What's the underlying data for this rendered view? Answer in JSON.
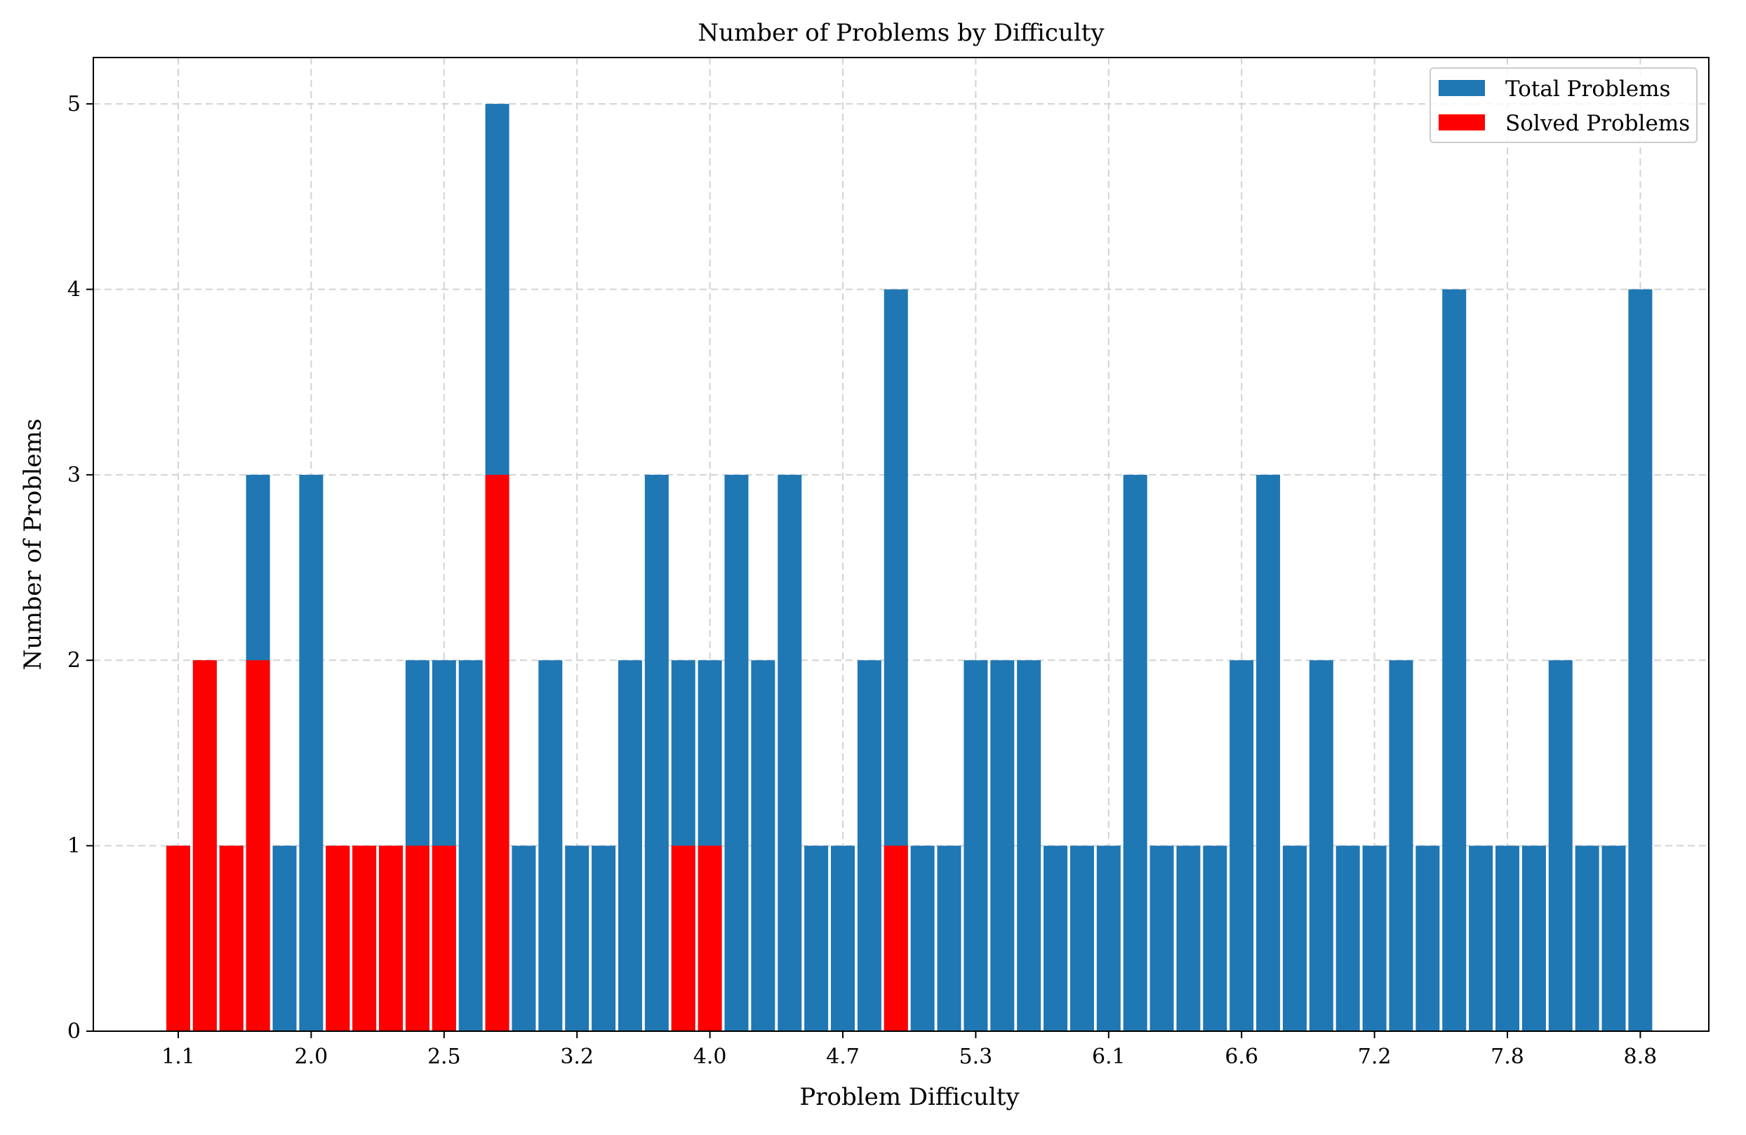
{
  "chart_data": {
    "type": "bar",
    "title": "Number of Problems by Difficulty",
    "xlabel": "Problem Difficulty",
    "ylabel": "Number of Problems",
    "ylim": [
      0,
      5.25
    ],
    "yticks": [
      "0",
      "1",
      "2",
      "3",
      "4",
      "5"
    ],
    "xticks": [
      {
        "label": "1.1",
        "bin": 0
      },
      {
        "label": "2.0",
        "bin": 5
      },
      {
        "label": "2.5",
        "bin": 10
      },
      {
        "label": "3.2",
        "bin": 15
      },
      {
        "label": "4.0",
        "bin": 20
      },
      {
        "label": "4.7",
        "bin": 25
      },
      {
        "label": "5.3",
        "bin": 30
      },
      {
        "label": "6.1",
        "bin": 35
      },
      {
        "label": "6.6",
        "bin": 40
      },
      {
        "label": "7.2",
        "bin": 45
      },
      {
        "label": "7.8",
        "bin": 50
      },
      {
        "label": "8.8",
        "bin": 55
      }
    ],
    "grid": true,
    "legend_position": "top-right",
    "colors": {
      "total": "#1f77b4",
      "solved": "#ff0000"
    },
    "series": [
      {
        "name": "Total Problems",
        "values": [
          1,
          2,
          1,
          3,
          1,
          3,
          1,
          1,
          1,
          2,
          2,
          2,
          5,
          1,
          2,
          1,
          1,
          2,
          3,
          2,
          2,
          3,
          2,
          3,
          1,
          1,
          2,
          4,
          1,
          1,
          2,
          2,
          2,
          1,
          1,
          1,
          3,
          1,
          1,
          1,
          2,
          3,
          1,
          2,
          1,
          1,
          2,
          1,
          4,
          1,
          1,
          1,
          2,
          1,
          1,
          4
        ]
      },
      {
        "name": "Solved Problems",
        "values": [
          1,
          2,
          1,
          2,
          0,
          0,
          1,
          1,
          1,
          1,
          1,
          0,
          3,
          0,
          0,
          0,
          0,
          0,
          0,
          1,
          1,
          0,
          0,
          0,
          0,
          0,
          0,
          1,
          0,
          0,
          0,
          0,
          0,
          0,
          0,
          0,
          0,
          0,
          0,
          0,
          0,
          0,
          0,
          0,
          0,
          0,
          0,
          0,
          0,
          0,
          0,
          0,
          0,
          0,
          0,
          0
        ]
      }
    ]
  }
}
